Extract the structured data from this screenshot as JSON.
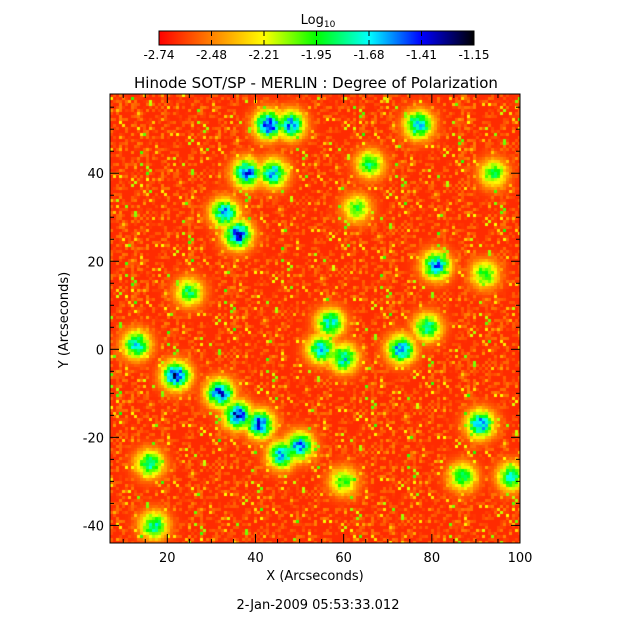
{
  "chart_data": {
    "type": "heatmap",
    "title": "Hinode SOT/SP - MERLIN : Degree of Polarization",
    "xlabel": "X (Arcseconds)",
    "ylabel": "Y (Arcseconds)",
    "xlim": [
      7,
      100
    ],
    "ylim": [
      -44,
      58
    ],
    "xticks": [
      20,
      40,
      60,
      80,
      100
    ],
    "yticks": [
      -40,
      -20,
      0,
      20,
      40
    ],
    "colorbar": {
      "label_base": "Log",
      "label_sub": "10",
      "ticks": [
        "-2.74",
        "-2.48",
        "-2.21",
        "-1.95",
        "-1.68",
        "-1.41",
        "-1.15"
      ],
      "range": [
        -2.74,
        -1.15
      ],
      "colormap": [
        "#ff0000",
        "#ff8000",
        "#ffff00",
        "#00ff00",
        "#00ffff",
        "#0000ff",
        "#000000"
      ]
    },
    "background_level": -2.65,
    "features": [
      {
        "x": 43,
        "y": 51,
        "peak": -1.25
      },
      {
        "x": 48,
        "y": 51,
        "peak": -1.45
      },
      {
        "x": 38,
        "y": 40,
        "peak": -1.4
      },
      {
        "x": 44,
        "y": 40,
        "peak": -1.5
      },
      {
        "x": 33,
        "y": 31,
        "peak": -1.5
      },
      {
        "x": 36,
        "y": 26,
        "peak": -1.3
      },
      {
        "x": 22,
        "y": -6,
        "peak": -1.3
      },
      {
        "x": 32,
        "y": -10,
        "peak": -1.35
      },
      {
        "x": 36,
        "y": -15,
        "peak": -1.3
      },
      {
        "x": 41,
        "y": -17,
        "peak": -1.35
      },
      {
        "x": 46,
        "y": -24,
        "peak": -1.5
      },
      {
        "x": 50,
        "y": -22,
        "peak": -1.45
      },
      {
        "x": 57,
        "y": 6,
        "peak": -1.6
      },
      {
        "x": 55,
        "y": 0,
        "peak": -1.55
      },
      {
        "x": 60,
        "y": -2,
        "peak": -1.6
      },
      {
        "x": 73,
        "y": 0,
        "peak": -1.45
      },
      {
        "x": 79,
        "y": 5,
        "peak": -1.7
      },
      {
        "x": 81,
        "y": 19,
        "peak": -1.45
      },
      {
        "x": 77,
        "y": 51,
        "peak": -1.5
      },
      {
        "x": 91,
        "y": -17,
        "peak": -1.45
      },
      {
        "x": 13,
        "y": 1,
        "peak": -1.6
      },
      {
        "x": 16,
        "y": -26,
        "peak": -1.7
      },
      {
        "x": 17,
        "y": -40,
        "peak": -1.7
      },
      {
        "x": 87,
        "y": -29,
        "peak": -1.8
      },
      {
        "x": 98,
        "y": -29,
        "peak": -1.7
      },
      {
        "x": 66,
        "y": 42,
        "peak": -1.8
      },
      {
        "x": 92,
        "y": 17,
        "peak": -1.85
      },
      {
        "x": 94,
        "y": 40,
        "peak": -1.85
      },
      {
        "x": 25,
        "y": 13,
        "peak": -1.8
      },
      {
        "x": 63,
        "y": 32,
        "peak": -1.9
      },
      {
        "x": 60,
        "y": -30,
        "peak": -1.9
      }
    ]
  },
  "footer": {
    "timestamp": "2-Jan-2009 05:53:33.012"
  }
}
